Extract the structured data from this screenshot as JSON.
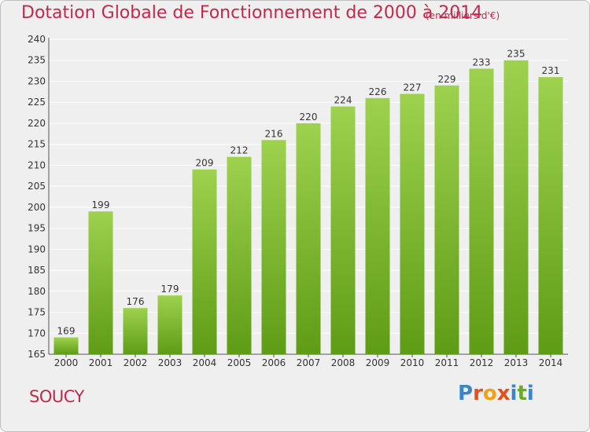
{
  "header": {
    "title": "Dotation Globale de Fonctionnement de 2000 à 2014",
    "unit": "(en milliers d'€)"
  },
  "footer": {
    "place": "SOUCY",
    "logo_letters": [
      "P",
      "r",
      "o",
      "x",
      "i",
      "t",
      "i"
    ],
    "logo_colors": [
      "#3a86c8",
      "#e84e1b",
      "#f2a20e",
      "#e84e1b",
      "#3a86c8",
      "#6aab2e",
      "#3a86c8"
    ]
  },
  "colors": {
    "bar_top": "#9dd14e",
    "bar_bottom": "#5f9c16",
    "grid": "#ffffff",
    "title": "#c0294b"
  },
  "chart_data": {
    "type": "bar",
    "title": "Dotation Globale de Fonctionnement de 2000 à 2014",
    "subtitle": "(en milliers d'€)",
    "xlabel": "",
    "ylabel": "",
    "categories": [
      "2000",
      "2001",
      "2002",
      "2003",
      "2004",
      "2005",
      "2006",
      "2007",
      "2008",
      "2009",
      "2010",
      "2011",
      "2012",
      "2013",
      "2014"
    ],
    "values": [
      169,
      199,
      176,
      179,
      209,
      212,
      216,
      220,
      224,
      226,
      227,
      229,
      233,
      235,
      231
    ],
    "ylim": [
      165,
      240
    ],
    "yticks": [
      165,
      170,
      175,
      180,
      185,
      190,
      195,
      200,
      205,
      210,
      215,
      220,
      225,
      230,
      235,
      240
    ],
    "grid": true,
    "data_labels": true
  }
}
